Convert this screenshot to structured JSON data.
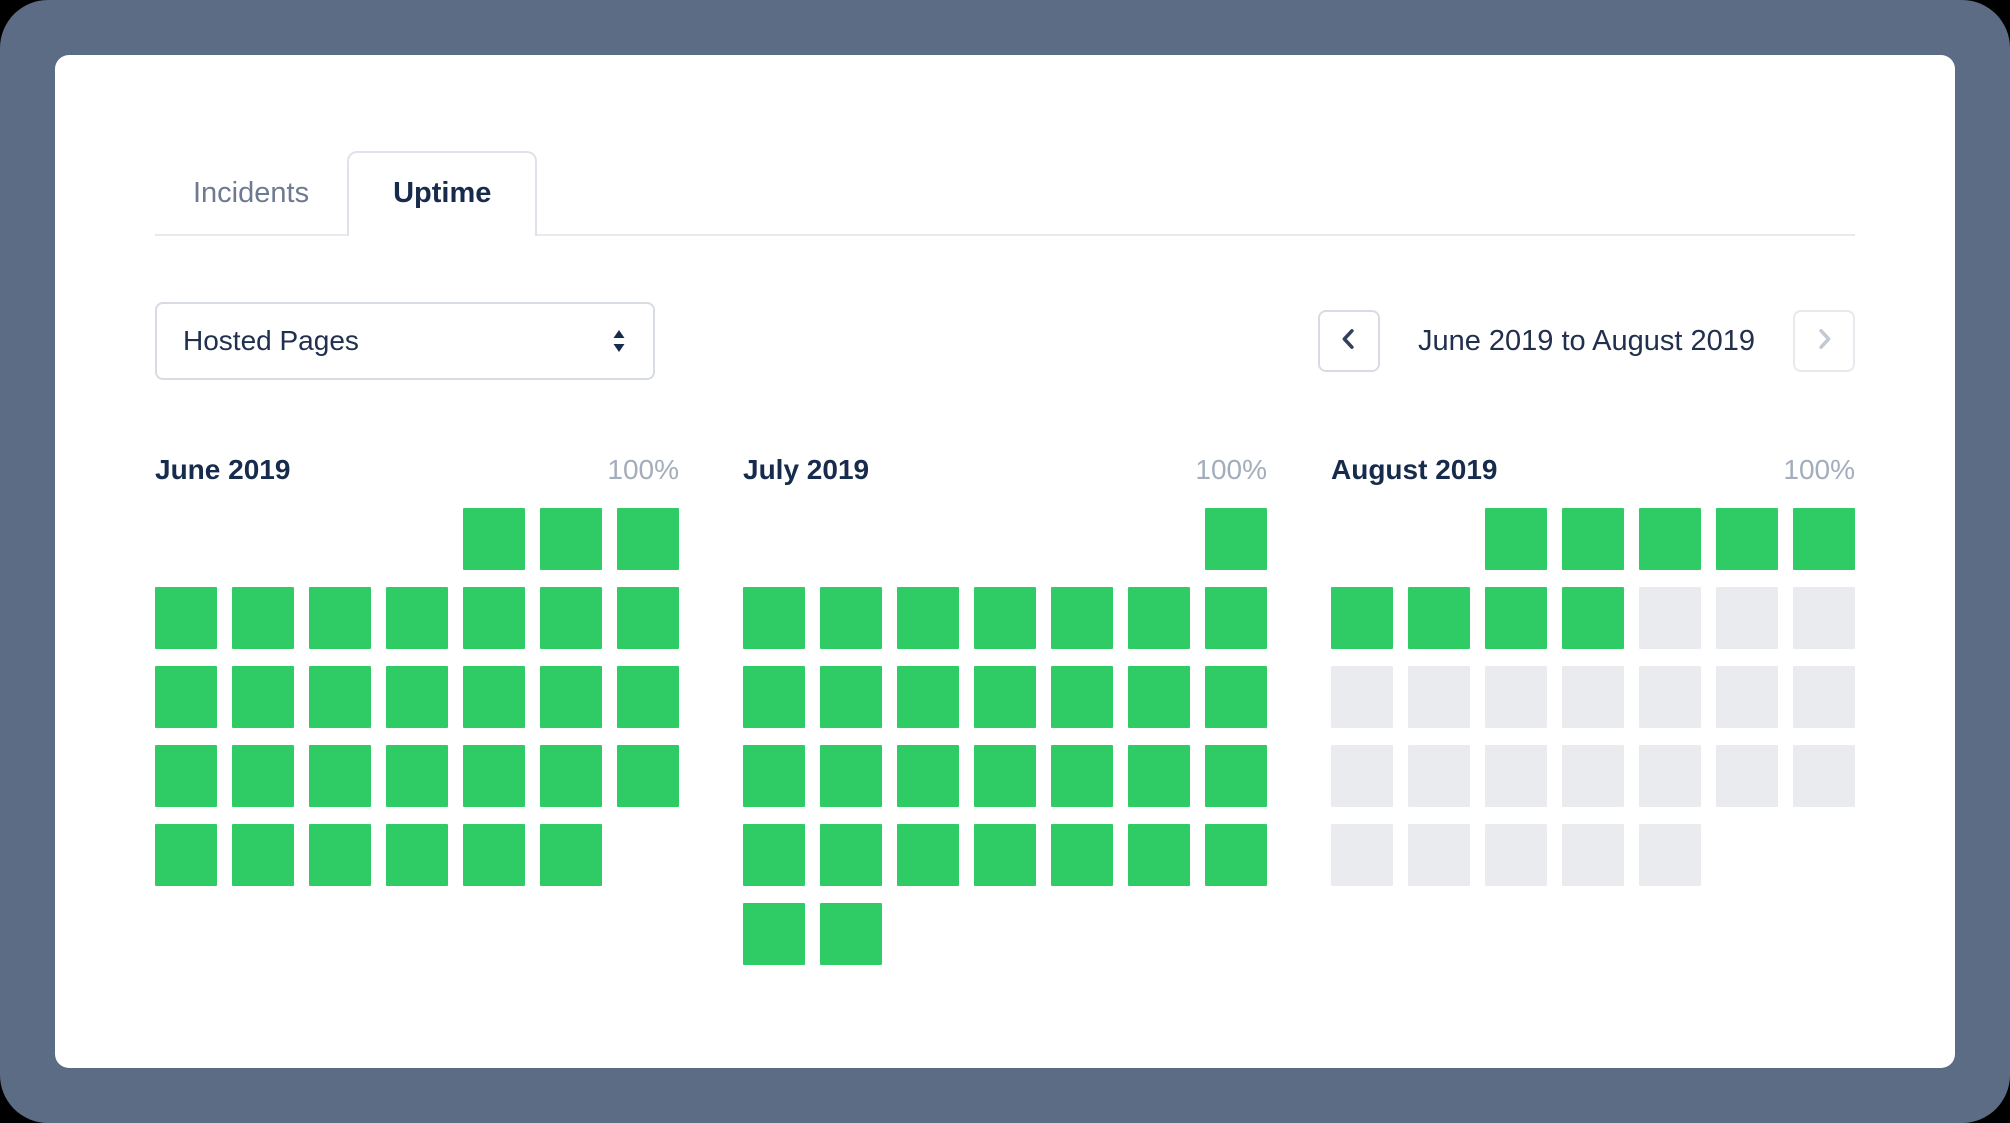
{
  "tabs": [
    {
      "label": "Incidents",
      "active": false
    },
    {
      "label": "Uptime",
      "active": true
    }
  ],
  "filter": {
    "selected": "Hosted Pages"
  },
  "date_nav": {
    "label": "June 2019 to August 2019",
    "prev_enabled": true,
    "next_enabled": false
  },
  "colors": {
    "up": "#2fcc66",
    "future": "#e9ebef",
    "frame": "#5c6c85",
    "title": "#172b4d",
    "muted": "#a4adbb",
    "border": "#dfe3e9"
  },
  "months": [
    {
      "name": "June 2019",
      "uptime": "100%",
      "weeks": [
        [
          "empty",
          "empty",
          "empty",
          "empty",
          "up",
          "up",
          "up"
        ],
        [
          "up",
          "up",
          "up",
          "up",
          "up",
          "up",
          "up"
        ],
        [
          "up",
          "up",
          "up",
          "up",
          "up",
          "up",
          "up"
        ],
        [
          "up",
          "up",
          "up",
          "up",
          "up",
          "up",
          "up"
        ],
        [
          "up",
          "up",
          "up",
          "up",
          "up",
          "up",
          "empty"
        ]
      ]
    },
    {
      "name": "July 2019",
      "uptime": "100%",
      "weeks": [
        [
          "empty",
          "empty",
          "empty",
          "empty",
          "empty",
          "empty",
          "up"
        ],
        [
          "up",
          "up",
          "up",
          "up",
          "up",
          "up",
          "up"
        ],
        [
          "up",
          "up",
          "up",
          "up",
          "up",
          "up",
          "up"
        ],
        [
          "up",
          "up",
          "up",
          "up",
          "up",
          "up",
          "up"
        ],
        [
          "up",
          "up",
          "up",
          "up",
          "up",
          "up",
          "up"
        ],
        [
          "up",
          "up",
          "empty",
          "empty",
          "empty",
          "empty",
          "empty"
        ]
      ]
    },
    {
      "name": "August 2019",
      "uptime": "100%",
      "weeks": [
        [
          "empty",
          "empty",
          "up",
          "up",
          "up",
          "up",
          "up"
        ],
        [
          "up",
          "up",
          "up",
          "up",
          "future",
          "future",
          "future"
        ],
        [
          "future",
          "future",
          "future",
          "future",
          "future",
          "future",
          "future"
        ],
        [
          "future",
          "future",
          "future",
          "future",
          "future",
          "future",
          "future"
        ],
        [
          "future",
          "future",
          "future",
          "future",
          "future",
          "empty",
          "empty"
        ]
      ]
    }
  ]
}
